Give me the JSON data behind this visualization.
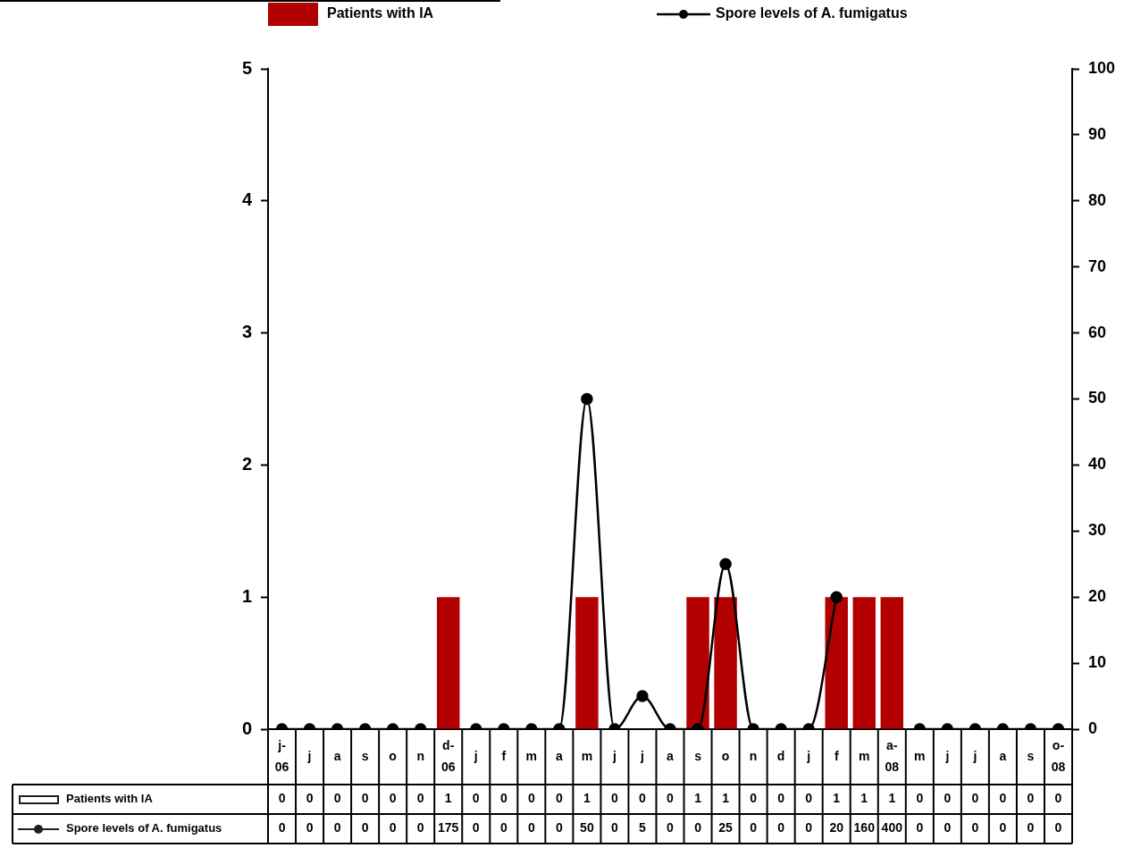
{
  "chart_data": {
    "type": "bar",
    "categories": [
      "j-06",
      "j",
      "a",
      "s",
      "o",
      "n",
      "d-06",
      "j",
      "f",
      "m",
      "a",
      "m",
      "j",
      "j",
      "a",
      "s",
      "o",
      "n",
      "d",
      "j",
      "f",
      "m",
      "a-08",
      "m",
      "j",
      "j",
      "a",
      "s",
      "o-08"
    ],
    "series": [
      {
        "name": "Patients with IA",
        "color": "#b30000",
        "values": [
          0,
          0,
          0,
          0,
          0,
          0,
          1,
          0,
          0,
          0,
          0,
          1,
          0,
          0,
          0,
          1,
          1,
          0,
          0,
          0,
          1,
          1,
          1,
          0,
          0,
          0,
          0,
          0,
          0
        ]
      },
      {
        "name": "Spore levels of A. fumigatus",
        "type": "line",
        "axis": "y2",
        "color": "#000000",
        "values": [
          0,
          0,
          0,
          0,
          0,
          0,
          null,
          0,
          0,
          0,
          0,
          50,
          0,
          5,
          0,
          0,
          25,
          0,
          0,
          0,
          20,
          null,
          null,
          0,
          0,
          0,
          0,
          0,
          0
        ],
        "value_labels": [
          "0",
          "0",
          "0",
          "0",
          "0",
          "0",
          "175",
          "0",
          "0",
          "0",
          "0",
          "50",
          "0",
          "5",
          "0",
          "0",
          "25",
          "0",
          "0",
          "0",
          "20",
          "160",
          "400",
          "0",
          "0",
          "0",
          "0",
          "0",
          "0"
        ]
      }
    ],
    "ylim": [
      0,
      5
    ],
    "yticks": [
      0,
      1,
      2,
      3,
      4,
      5
    ],
    "y2lim": [
      0,
      100
    ],
    "y2ticks": [
      0,
      10,
      20,
      30,
      40,
      50,
      60,
      70,
      80,
      90,
      100
    ],
    "grid": false,
    "legend": "top",
    "marker": "circle",
    "data_labels": true
  }
}
